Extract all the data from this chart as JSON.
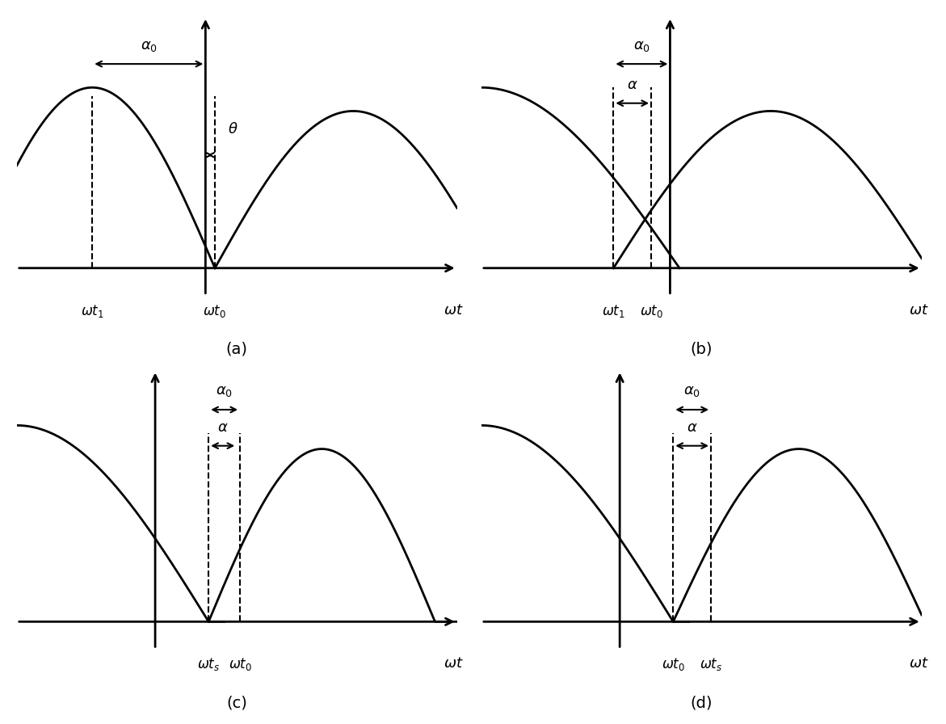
{
  "background": "#ffffff",
  "lw": 2.0,
  "panels": {
    "a": {
      "label": "(a)",
      "wt1": -1.8,
      "wt0": 0.15,
      "yax": 0.0,
      "ann1_label": "$\\alpha_0$",
      "ann2_label": "$\\theta$",
      "xlabel1": "$\\omega t_1$",
      "xlabel2": "$\\omega t_0$",
      "wt_label": "$\\omega t$"
    },
    "b": {
      "label": "(b)",
      "wt1": -0.9,
      "wt0": -0.3,
      "yax": 0.0,
      "ann1_label": "$\\alpha_0$",
      "ann2_label": "$\\alpha$",
      "xlabel1": "$\\omega t_1$",
      "xlabel2": "$\\omega t_0$",
      "wt_label": "$\\omega t$"
    },
    "c": {
      "label": "(c)",
      "wt_s": 0.05,
      "wt0": 0.55,
      "yax": -1.5,
      "ann1_label": "$\\alpha_0$",
      "ann2_label": "$\\alpha$",
      "xlabel1": "$\\omega t_s$",
      "xlabel2": "$\\omega t_0$",
      "wt_label": "$\\omega t$"
    },
    "d": {
      "label": "(d)",
      "wt0": 0.05,
      "wt_s": 0.65,
      "yax": -1.5,
      "ann1_label": "$\\alpha_0$",
      "ann2_label": "$\\alpha$",
      "xlabel1": "$\\omega t_0$",
      "xlabel2": "$\\omega t_s$",
      "wt_label": "$\\omega t$"
    }
  }
}
